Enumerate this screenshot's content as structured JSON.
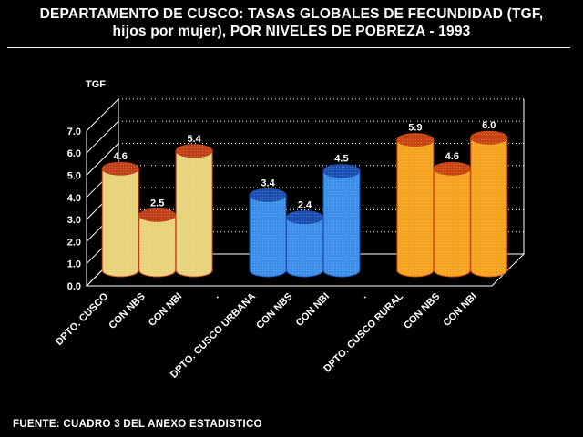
{
  "title_line1": "DEPARTAMENTO DE CUSCO: TASAS GLOBALES DE FECUNDIDAD (TGF,",
  "title_line2": "hijos por mujer), POR NIVELES DE POBREZA - 1993",
  "footer": "FUENTE: CUADRO 3  DEL ANEXO ESTADISTICO",
  "chart_data": {
    "type": "bar",
    "ylabel": "TGF",
    "ylim": [
      0,
      7
    ],
    "yticks": [
      "0.0",
      "1.0",
      "2.0",
      "3.0",
      "4.0",
      "5.0",
      "6.0",
      "7.0"
    ],
    "grid": true,
    "categories": [
      "DPTO. CUSCO",
      "CON NBS",
      "CON NBI",
      ".",
      "DPTO. CUSCO URBANA",
      "CON NBS",
      "CON NBI",
      ".",
      "DPTO. CUSCO RURAL",
      "CON NBS",
      "CON NBI"
    ],
    "values": [
      4.6,
      2.5,
      5.4,
      null,
      3.4,
      2.4,
      4.5,
      null,
      5.9,
      4.6,
      6.0
    ],
    "value_labels": [
      "4.6",
      "2.5",
      "5.4",
      "",
      "3.4",
      "2.4",
      "4.5",
      "",
      "5.9",
      "4.6",
      "6.0"
    ],
    "groups": [
      {
        "name": "cusco",
        "indices": [
          0,
          1,
          2
        ],
        "color": "#e8d27a",
        "outline": "#c0401a"
      },
      {
        "name": "urbana",
        "indices": [
          4,
          5,
          6
        ],
        "color": "#3b8fe8",
        "outline": "#1a4fb0"
      },
      {
        "name": "rural",
        "indices": [
          8,
          9,
          10
        ],
        "color": "#f5a21e",
        "outline": "#c84410"
      }
    ]
  }
}
